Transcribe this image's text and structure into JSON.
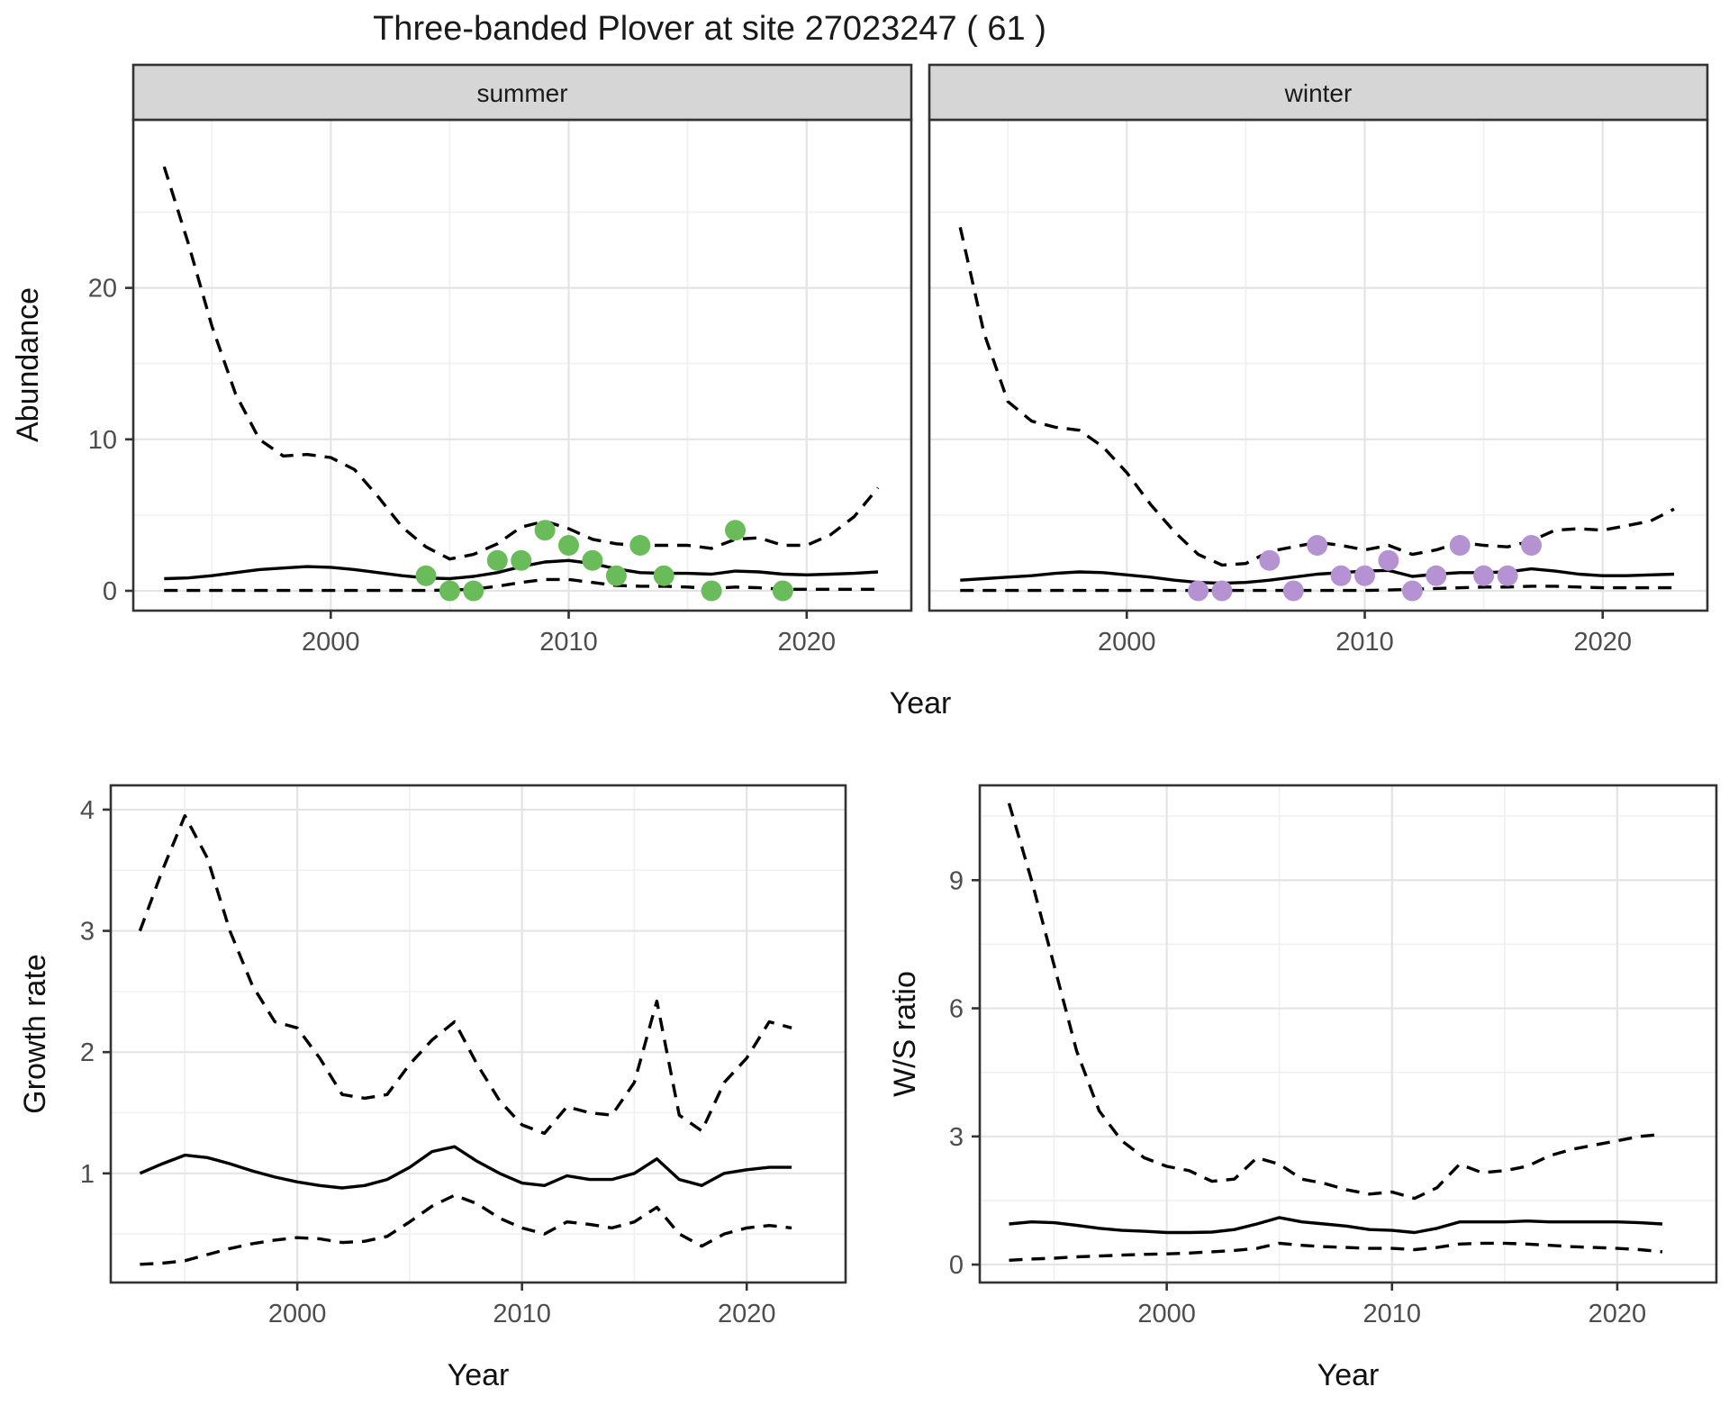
{
  "title": "Three-banded Plover at site 27023247 ( 61 )",
  "labels": {
    "year_axis": "Year",
    "abundance_axis": "Abundance",
    "growth_axis": "Growth rate",
    "ws_axis": "W/S ratio",
    "summer_facet": "summer",
    "winter_facet": "winter"
  },
  "colors": {
    "summer_point": "#6abc5b",
    "winter_point": "#b593d2",
    "line": "#000000",
    "grid_major": "#e4e4e4",
    "grid_minor": "#f0f0f0",
    "panel_border": "#333333",
    "strip_bg": "#d6d6d6",
    "axis_text": "#4d4d4d",
    "tick_mark": "#333333"
  },
  "chart_data": [
    {
      "id": "abundance_summer",
      "type": "line",
      "facet": "summer",
      "title": "summer",
      "xlabel": "Year",
      "ylabel": "Abundance",
      "xlim": [
        1991.7,
        2024.4
      ],
      "ylim": [
        -1.31,
        31.1
      ],
      "xticks": [
        2000,
        2010,
        2020
      ],
      "xminor": [
        1995,
        2005,
        2015
      ],
      "yticks": [
        0,
        10,
        20
      ],
      "yminor": [
        5,
        15,
        25
      ],
      "x": [
        1993,
        1994,
        1995,
        1996,
        1997,
        1998,
        1999,
        2000,
        2001,
        2002,
        2003,
        2004,
        2005,
        2006,
        2007,
        2008,
        2009,
        2010,
        2011,
        2012,
        2013,
        2014,
        2015,
        2016,
        2017,
        2018,
        2019,
        2020,
        2021,
        2022,
        2023
      ],
      "series": [
        {
          "name": "upper95",
          "style": "dashed",
          "values": [
            28,
            23,
            17.5,
            13,
            10,
            8.9,
            9,
            8.8,
            8,
            6.2,
            4.2,
            2.9,
            2.1,
            2.4,
            3.1,
            4.2,
            4.6,
            4.1,
            3.4,
            3.1,
            3,
            3,
            3,
            2.8,
            3.4,
            3.5,
            3,
            3,
            3.7,
            4.9,
            6.8
          ]
        },
        {
          "name": "mean",
          "style": "solid",
          "values": [
            0.8,
            0.85,
            1,
            1.2,
            1.4,
            1.5,
            1.6,
            1.55,
            1.4,
            1.2,
            1,
            0.85,
            0.8,
            0.95,
            1.2,
            1.6,
            1.9,
            2,
            1.8,
            1.45,
            1.2,
            1.15,
            1.15,
            1.1,
            1.3,
            1.25,
            1.1,
            1.05,
            1.1,
            1.15,
            1.25
          ]
        },
        {
          "name": "lower95",
          "style": "dashed",
          "values": [
            0.02,
            0.02,
            0.02,
            0.02,
            0.02,
            0.02,
            0.02,
            0.02,
            0.02,
            0.02,
            0.02,
            0.02,
            0.05,
            0.1,
            0.3,
            0.55,
            0.75,
            0.75,
            0.55,
            0.35,
            0.3,
            0.3,
            0.25,
            0.15,
            0.25,
            0.2,
            0.1,
            0.1,
            0.1,
            0.1,
            0.1
          ]
        }
      ],
      "points": {
        "color_key": "summer_point",
        "data": [
          [
            2004,
            1
          ],
          [
            2005,
            0
          ],
          [
            2006,
            0
          ],
          [
            2007,
            2
          ],
          [
            2008,
            2
          ],
          [
            2009,
            4
          ],
          [
            2010,
            3
          ],
          [
            2011,
            2
          ],
          [
            2012,
            1
          ],
          [
            2013,
            3
          ],
          [
            2014,
            1
          ],
          [
            2016,
            0
          ],
          [
            2017,
            4
          ],
          [
            2019,
            0
          ]
        ]
      }
    },
    {
      "id": "abundance_winter",
      "type": "line",
      "facet": "winter",
      "title": "winter",
      "xlabel": "Year",
      "ylabel": "Abundance",
      "xlim": [
        1991.7,
        2024.4
      ],
      "ylim": [
        -1.31,
        31.1
      ],
      "xticks": [
        2000,
        2010,
        2020
      ],
      "xminor": [
        1995,
        2005,
        2015
      ],
      "yticks": [
        0,
        10,
        20
      ],
      "yminor": [
        5,
        15,
        25
      ],
      "x": [
        1993,
        1994,
        1995,
        1996,
        1997,
        1998,
        1999,
        2000,
        2001,
        2002,
        2003,
        2004,
        2005,
        2006,
        2007,
        2008,
        2009,
        2010,
        2011,
        2012,
        2013,
        2014,
        2015,
        2016,
        2017,
        2018,
        2019,
        2020,
        2021,
        2022,
        2023
      ],
      "series": [
        {
          "name": "upper95",
          "style": "dashed",
          "values": [
            24,
            17,
            12.5,
            11.2,
            10.8,
            10.6,
            9.5,
            7.8,
            5.7,
            3.9,
            2.4,
            1.7,
            1.8,
            2.6,
            2.9,
            3.2,
            3,
            2.7,
            3,
            2.4,
            2.7,
            3.2,
            3,
            2.9,
            3.3,
            4,
            4.1,
            4,
            4.3,
            4.6,
            5.4
          ]
        },
        {
          "name": "mean",
          "style": "solid",
          "values": [
            0.7,
            0.8,
            0.9,
            1,
            1.15,
            1.25,
            1.2,
            1.05,
            0.9,
            0.7,
            0.55,
            0.5,
            0.55,
            0.7,
            0.9,
            1.1,
            1.2,
            1.3,
            1.35,
            0.95,
            1.1,
            1.2,
            1.2,
            1.25,
            1.45,
            1.3,
            1.1,
            1,
            1,
            1.05,
            1.1
          ]
        },
        {
          "name": "lower95",
          "style": "dashed",
          "values": [
            0.02,
            0.02,
            0.02,
            0.02,
            0.02,
            0.02,
            0.02,
            0.02,
            0.02,
            0.02,
            0.02,
            0.02,
            0.02,
            0.02,
            0.02,
            0.02,
            0.02,
            0.02,
            0.05,
            0.1,
            0.15,
            0.2,
            0.25,
            0.25,
            0.3,
            0.3,
            0.25,
            0.2,
            0.2,
            0.2,
            0.2
          ]
        }
      ],
      "points": {
        "color_key": "winter_point",
        "data": [
          [
            2003,
            0
          ],
          [
            2004,
            0
          ],
          [
            2006,
            2
          ],
          [
            2007,
            0
          ],
          [
            2008,
            3
          ],
          [
            2009,
            1
          ],
          [
            2010,
            1
          ],
          [
            2011,
            2
          ],
          [
            2012,
            0
          ],
          [
            2013,
            1
          ],
          [
            2014,
            3
          ],
          [
            2015,
            1
          ],
          [
            2016,
            1
          ],
          [
            2017,
            3
          ]
        ]
      }
    },
    {
      "id": "growth_rate",
      "type": "line",
      "facet": null,
      "title": "",
      "xlabel": "Year",
      "ylabel": "Growth rate",
      "xlim": [
        1991.7,
        2024.4
      ],
      "ylim": [
        0.1,
        4.2
      ],
      "xticks": [
        2000,
        2010,
        2020
      ],
      "xminor": [
        1995,
        2005,
        2015
      ],
      "yticks": [
        1,
        2,
        3,
        4
      ],
      "yminor": [
        0.5,
        1.5,
        2.5,
        3.5
      ],
      "x": [
        1993,
        1994,
        1995,
        1996,
        1997,
        1998,
        1999,
        2000,
        2001,
        2002,
        2003,
        2004,
        2005,
        2006,
        2007,
        2008,
        2009,
        2010,
        2011,
        2012,
        2013,
        2014,
        2015,
        2016,
        2017,
        2018,
        2019,
        2020,
        2021,
        2022
      ],
      "series": [
        {
          "name": "upper95",
          "style": "dashed",
          "values": [
            3,
            3.5,
            3.95,
            3.6,
            3,
            2.55,
            2.25,
            2.2,
            1.95,
            1.65,
            1.62,
            1.65,
            1.9,
            2.1,
            2.25,
            1.9,
            1.6,
            1.4,
            1.33,
            1.55,
            1.5,
            1.48,
            1.75,
            2.42,
            1.48,
            1.35,
            1.75,
            1.95,
            2.25,
            2.2
          ]
        },
        {
          "name": "mean",
          "style": "solid",
          "values": [
            1,
            1.08,
            1.15,
            1.13,
            1.08,
            1.02,
            0.97,
            0.93,
            0.9,
            0.88,
            0.9,
            0.95,
            1.05,
            1.18,
            1.22,
            1.1,
            1,
            0.92,
            0.9,
            0.98,
            0.95,
            0.95,
            1,
            1.12,
            0.95,
            0.9,
            1,
            1.03,
            1.05,
            1.05
          ]
        },
        {
          "name": "lower95",
          "style": "dashed",
          "values": [
            0.25,
            0.26,
            0.28,
            0.33,
            0.38,
            0.42,
            0.45,
            0.47,
            0.46,
            0.43,
            0.44,
            0.48,
            0.6,
            0.73,
            0.82,
            0.75,
            0.63,
            0.55,
            0.5,
            0.6,
            0.58,
            0.55,
            0.6,
            0.72,
            0.5,
            0.4,
            0.5,
            0.55,
            0.57,
            0.55
          ]
        }
      ],
      "points": null
    },
    {
      "id": "ws_ratio",
      "type": "line",
      "facet": null,
      "title": "",
      "xlabel": "Year",
      "ylabel": "W/S ratio",
      "xlim": [
        1991.7,
        2024.4
      ],
      "ylim": [
        -0.42,
        11.22
      ],
      "xticks": [
        2000,
        2010,
        2020
      ],
      "xminor": [
        1995,
        2005,
        2015
      ],
      "yticks": [
        0,
        3,
        6,
        9
      ],
      "yminor": [
        1.5,
        4.5,
        7.5,
        10.5
      ],
      "x": [
        1993,
        1994,
        1995,
        1996,
        1997,
        1998,
        1999,
        2000,
        2001,
        2002,
        2003,
        2004,
        2005,
        2006,
        2007,
        2008,
        2009,
        2010,
        2011,
        2012,
        2013,
        2014,
        2015,
        2016,
        2017,
        2018,
        2019,
        2020,
        2021,
        2022
      ],
      "series": [
        {
          "name": "upper95",
          "style": "dashed",
          "values": [
            10.8,
            9,
            7,
            5,
            3.6,
            2.9,
            2.5,
            2.3,
            2.2,
            1.95,
            2,
            2.5,
            2.35,
            2,
            1.9,
            1.75,
            1.65,
            1.7,
            1.55,
            1.8,
            2.35,
            2.15,
            2.2,
            2.3,
            2.55,
            2.7,
            2.8,
            2.9,
            3,
            3.05
          ]
        },
        {
          "name": "mean",
          "style": "solid",
          "values": [
            0.95,
            1,
            0.98,
            0.92,
            0.85,
            0.8,
            0.78,
            0.75,
            0.75,
            0.76,
            0.82,
            0.95,
            1.1,
            1,
            0.95,
            0.9,
            0.82,
            0.8,
            0.75,
            0.85,
            1,
            1,
            1,
            1.02,
            1,
            1,
            1,
            1,
            0.98,
            0.95
          ]
        },
        {
          "name": "lower95",
          "style": "dashed",
          "values": [
            0.1,
            0.13,
            0.15,
            0.18,
            0.2,
            0.22,
            0.24,
            0.25,
            0.27,
            0.3,
            0.33,
            0.38,
            0.5,
            0.45,
            0.42,
            0.4,
            0.38,
            0.38,
            0.35,
            0.4,
            0.48,
            0.5,
            0.5,
            0.48,
            0.45,
            0.42,
            0.4,
            0.38,
            0.35,
            0.3
          ]
        }
      ],
      "points": null
    }
  ]
}
